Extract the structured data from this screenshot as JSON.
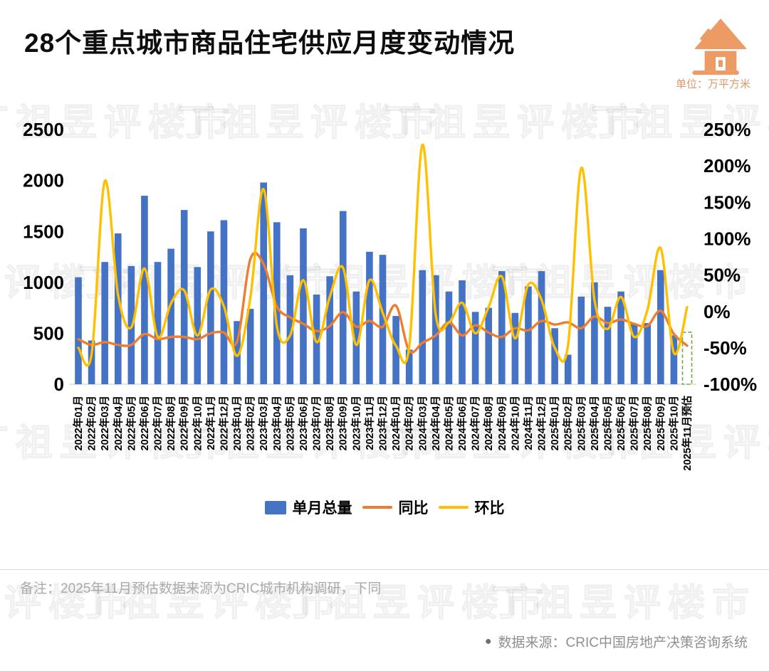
{
  "header": {
    "title": "28个重点城市商品住宅供应月度变动情况",
    "unit_label": "单位：万平方米"
  },
  "legend": {
    "bar_label": "单月总量",
    "yoy_label": "同比",
    "mom_label": "环比"
  },
  "footer": {
    "note": "备注：2025年11月预估数据来源为CRIC城市机构调研，下同",
    "source_bullet": "●",
    "source": "数据来源：CRIC中国房地产决策咨询系统"
  },
  "watermark": {
    "text": "丁祖昱评楼市"
  },
  "chart_data": {
    "type": "bar",
    "title": "28个重点城市商品住宅供应月度变动情况",
    "unit": "万平方米",
    "grid": false,
    "legend_position": "bottom",
    "categories": [
      "2022年01月",
      "2022年02月",
      "2022年03月",
      "2022年04月",
      "2022年05月",
      "2022年06月",
      "2022年07月",
      "2022年08月",
      "2022年09月",
      "2022年10月",
      "2022年11月",
      "2022年12月",
      "2023年01月",
      "2023年02月",
      "2023年03月",
      "2023年04月",
      "2023年05月",
      "2023年06月",
      "2023年07月",
      "2023年08月",
      "2023年09月",
      "2023年10月",
      "2023年11月",
      "2023年12月",
      "2024年01月",
      "2024年02月",
      "2024年03月",
      "2024年04月",
      "2024年05月",
      "2024年06月",
      "2024年07月",
      "2024年08月",
      "2024年09月",
      "2024年10月",
      "2024年11月",
      "2024年12月",
      "2025年01月",
      "2025年02月",
      "2025年03月",
      "2025年04月",
      "2025年05月",
      "2025年06月",
      "2025年07月",
      "2025年08月",
      "2025年09月",
      "2025年10月",
      "2025年11月预估"
    ],
    "series": [
      {
        "name": "单月总量",
        "type": "bar",
        "axis": "left",
        "color": "#4472C4",
        "values": [
          1050,
          430,
          1200,
          1480,
          1160,
          1850,
          1200,
          1330,
          1710,
          1150,
          1500,
          1610,
          620,
          740,
          1980,
          1590,
          1070,
          1530,
          880,
          1060,
          1700,
          910,
          1300,
          1270,
          670,
          340,
          1120,
          1070,
          910,
          1020,
          710,
          750,
          1110,
          700,
          960,
          1110,
          550,
          290,
          860,
          1000,
          760,
          910,
          590,
          600,
          1120,
          480,
          510
        ]
      },
      {
        "name": "同比",
        "type": "line",
        "axis": "right",
        "color": "#ED7D31",
        "values": [
          -38,
          -46,
          -42,
          -46,
          -46,
          -31,
          -38,
          -35,
          -35,
          -38,
          -30,
          -29,
          -41,
          72,
          65,
          7,
          -8,
          -17,
          -27,
          -20,
          -1,
          -21,
          -13,
          -21,
          8,
          -54,
          -43,
          -33,
          -15,
          -33,
          -19,
          -29,
          -35,
          -23,
          -26,
          -13,
          -18,
          -15,
          -23,
          -7,
          -16,
          -11,
          -17,
          -20,
          1,
          -31,
          -47
        ]
      },
      {
        "name": "环比",
        "type": "line",
        "axis": "right",
        "color": "#FFC000",
        "values": [
          -50,
          -59,
          179,
          23,
          -22,
          59,
          -35,
          11,
          29,
          -33,
          30,
          7,
          -61,
          19,
          168,
          -20,
          -33,
          43,
          -42,
          20,
          60,
          -46,
          43,
          -2,
          -47,
          -49,
          229,
          -4,
          -15,
          12,
          -30,
          6,
          48,
          -37,
          37,
          16,
          -50,
          -47,
          197,
          16,
          -24,
          20,
          -35,
          2,
          87,
          -57,
          6
        ]
      }
    ],
    "left_axis": {
      "min": 0,
      "max": 2500,
      "ticks": [
        "0",
        "500",
        "1000",
        "1500",
        "2000",
        "2500"
      ],
      "tick_values": [
        0,
        500,
        1000,
        1500,
        2000,
        2500
      ]
    },
    "right_axis": {
      "min": -100,
      "max": 250,
      "ticks": [
        "250%",
        "200%",
        "150%",
        "100%",
        "50%",
        "0%",
        "-50%",
        "-100%"
      ],
      "tick_values": [
        250,
        200,
        150,
        100,
        50,
        0,
        -50,
        -100
      ]
    },
    "estimate_last_bar": true,
    "estimate_color": "#70AD47"
  }
}
